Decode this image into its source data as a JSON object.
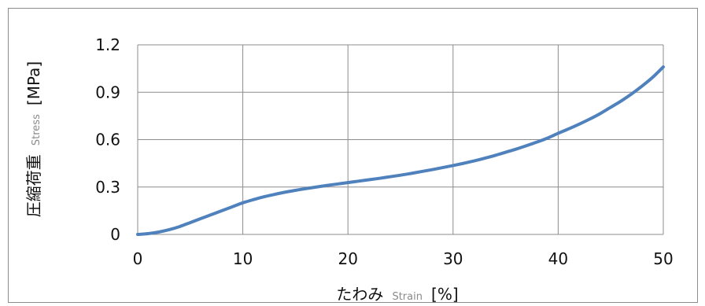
{
  "chart_data": {
    "type": "line",
    "x": [
      0,
      1,
      2,
      3,
      4,
      5,
      6,
      7,
      8,
      9,
      10,
      11,
      12,
      13,
      14,
      15,
      16,
      17,
      18,
      19,
      20,
      21,
      22,
      23,
      24,
      25,
      26,
      27,
      28,
      29,
      30,
      31,
      32,
      33,
      34,
      35,
      36,
      37,
      38,
      39,
      40,
      41,
      42,
      43,
      44,
      45,
      46,
      47,
      48,
      49,
      50
    ],
    "series": [
      {
        "values": [
          0,
          0.005,
          0.015,
          0.03,
          0.05,
          0.075,
          0.1,
          0.125,
          0.15,
          0.175,
          0.2,
          0.22,
          0.238,
          0.253,
          0.267,
          0.279,
          0.29,
          0.3,
          0.31,
          0.319,
          0.328,
          0.337,
          0.346,
          0.355,
          0.365,
          0.375,
          0.386,
          0.398,
          0.41,
          0.423,
          0.436,
          0.45,
          0.465,
          0.482,
          0.5,
          0.52,
          0.54,
          0.562,
          0.585,
          0.61,
          0.64,
          0.668,
          0.698,
          0.73,
          0.765,
          0.805,
          0.845,
          0.89,
          0.94,
          0.995,
          1.06
        ],
        "color": "#4f81bd"
      }
    ],
    "xlim": [
      0,
      50
    ],
    "ylim": [
      0,
      1.2
    ],
    "x_ticks": [
      "0",
      "10",
      "20",
      "30",
      "40",
      "50"
    ],
    "y_ticks": [
      "0",
      "0.3",
      "0.6",
      "0.9",
      "1.2"
    ],
    "xlabel": {
      "main": "たわみ",
      "sub": "Strain",
      "unit": "[%]"
    },
    "ylabel": {
      "main": "圧縮荷重",
      "sub": "Stress",
      "unit": "[MPa]"
    },
    "grid": true,
    "grid_color": "#8c8c8c",
    "legend": "none"
  }
}
